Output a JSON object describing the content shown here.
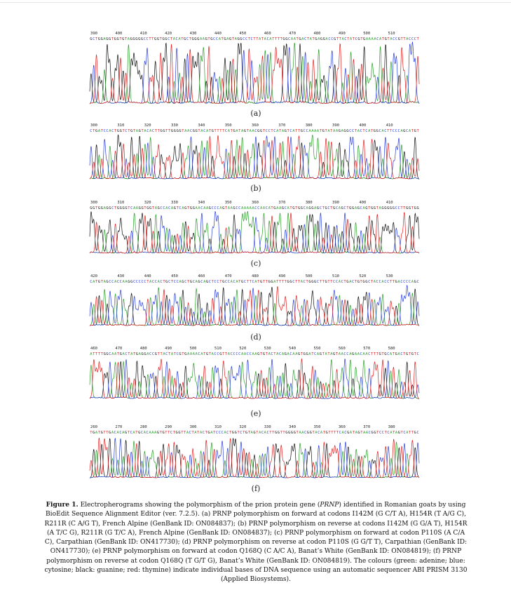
{
  "panels": [
    {
      "id": "a",
      "label": "(a)",
      "ticks": [
        "390",
        "400",
        "410",
        "420",
        "430",
        "440",
        "450",
        "460",
        "470",
        "480",
        "490",
        "500",
        "510"
      ],
      "sequence": "GCTGGAGGTGGTGTAGGGGGCCTTGGTGGCTACATGCTGGGAAGTGCCATGAGTAGGCCTCTTATACATTTTGGCAATGACTATGAGGACCGTTACTATCGTGAAAACATGTACCGTTACCCT"
    },
    {
      "id": "b",
      "label": "(b)",
      "ticks": [
        "300",
        "310",
        "320",
        "330",
        "340",
        "350",
        "360",
        "370",
        "380",
        "390",
        "400",
        "410"
      ],
      "sequence": "CTGATCCACTGGTCTGTAGTACACTTGGTTGGGGTAACGGTACATGTTTTCATGATAGTAACGGTCCTCATAGTCATTGCCAAAATGTATAAGAGGCCTACTCATGGCACTTCCCAGCATGT"
    },
    {
      "id": "c",
      "label": "(c)",
      "ticks": [
        "300",
        "310",
        "320",
        "330",
        "340",
        "350",
        "360",
        "370",
        "380",
        "390",
        "400",
        "410"
      ],
      "sequence": "GGTGGAGGCTGGGGTCAAGGTGGTAGCCACAGTCAGTGGAACAAGCCCAGTAAGCCAAAAACCAACATGAAGCATGTGGCAGGAGCTGCTGCAGCTGGAGCAGTGGTAGGGGGCCTTGGTGG"
    },
    {
      "id": "d",
      "label": "(d)",
      "ticks": [
        "420",
        "430",
        "440",
        "450",
        "460",
        "470",
        "480",
        "490",
        "500",
        "510",
        "520",
        "530"
      ],
      "sequence": "CATGTAGCCACCAAGGCCCCCTACCACTGCTCCAGCTGCAGCAGCTCCTGCCACATGCTTCATGTTGGATTTTGGCTTACTGGGCTTGTTCCACTGACTGTGGCTACCACCTTGACCCCAGC"
    },
    {
      "id": "e",
      "label": "(e)",
      "ticks": [
        "460",
        "470",
        "480",
        "490",
        "500",
        "510",
        "520",
        "530",
        "540",
        "550",
        "560",
        "570",
        "580"
      ],
      "sequence": "ATTTTGGCAATGACTATGAGGACCGTTACTATCGTGAAAACATGTACCGTTACCCCAACCAAGTGTACTACAGACAAGTGGATCAGTATAGTAACCAGAACAACTTTGTGCATGACTGTGTC"
    },
    {
      "id": "f",
      "label": "(f)",
      "ticks": [
        "260",
        "270",
        "280",
        "290",
        "300",
        "310",
        "320",
        "330",
        "340",
        "350",
        "360",
        "370",
        "380"
      ],
      "sequence": "TGATGTTGACACAGTCATGCACAAAGTGTTCTGGTTACTATACTGATCCCACTGGTCTGTAGTACACTTGGTTGGGGTAACGGTACATGTTTTCACGATAGTAACGGTCCTCATAGTCATTGC"
    }
  ],
  "base_colors": {
    "A": "#2da02d",
    "C": "#2a3fd8",
    "G": "#111111",
    "T": "#e02020"
  },
  "caption": {
    "label": "Figure 1.",
    "pre": " Electropherograms showing the polymorphism of the prion protein gene (",
    "gene": "PRNP",
    "post": ") identified in Romanian goats by using BioEdit Sequence Alignment Editor (ver. 7.2.5). (a) PRNP polymorphism on forward at codons I142M (G C/T A), H154R (T A/G C), R211R (C A/G T), French Alpine (GenBank ID: ON084837); (b) PRNP polymorphism on reverse at codons I142M (G G/A T), H154R (A T/C G), R211R (G T/C A), French Alpine (GenBank ID: ON084837); (c) PRNP polymorphism on forward at codon P110S (A C/A C), Carpathian (GenBank ID: ON417730); (d) PRNP polymorphism on reverse at codon P110S (G G/T T), Carpathian (GenBank ID: ON417730); (e) PRNP polymorphism on forward at codon Q168Q (C A/C A), Banat’s White (GenBank ID: ON084819); (f) PRNP polymorphism on reverse at codon Q168Q (T G/T G), Banat’s White (GenBank ID: ON084819). The colours (green: adenine; blue: cytosine; black: guanine; red: thymine) indicate individual bases of DNA sequence using an automatic sequencer ABI PRISM 3130 (Applied Biosystems)."
  }
}
